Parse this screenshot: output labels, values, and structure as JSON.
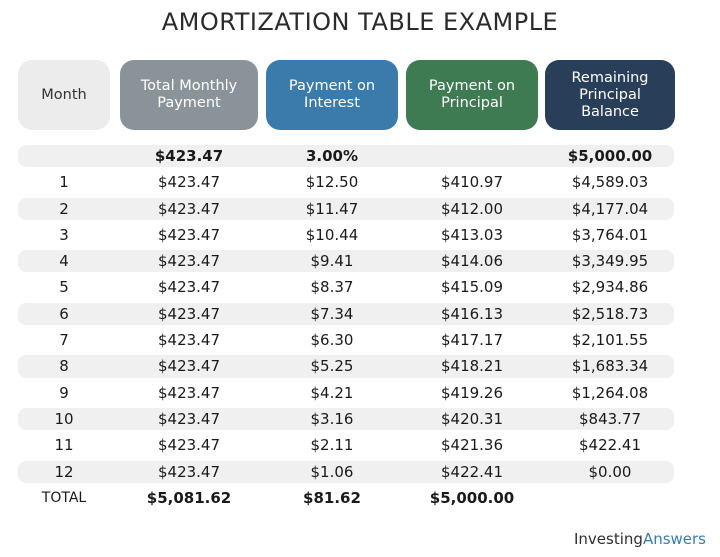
{
  "title": "AMORTIZATION TABLE EXAMPLE",
  "headers": {
    "month": "Month",
    "total": "Total Monthly Payment",
    "interest": "Payment on Interest",
    "principal": "Payment on Principal",
    "balance": "Remaining Principal Balance"
  },
  "colors": {
    "month_header": "#ececec",
    "total_header": "#8a9399",
    "interest_header": "#3b7bab",
    "principal_header": "#3e7b52",
    "balance_header": "#293e58"
  },
  "initial": {
    "month": "",
    "total": "$423.47",
    "interest": "3.00%",
    "principal": "",
    "balance": "$5,000.00"
  },
  "rows": [
    {
      "month": "1",
      "total": "$423.47",
      "interest": "$12.50",
      "principal": "$410.97",
      "balance": "$4,589.03"
    },
    {
      "month": "2",
      "total": "$423.47",
      "interest": "$11.47",
      "principal": "$412.00",
      "balance": "$4,177.04"
    },
    {
      "month": "3",
      "total": "$423.47",
      "interest": "$10.44",
      "principal": "$413.03",
      "balance": "$3,764.01"
    },
    {
      "month": "4",
      "total": "$423.47",
      "interest": "$9.41",
      "principal": "$414.06",
      "balance": "$3,349.95"
    },
    {
      "month": "5",
      "total": "$423.47",
      "interest": "$8.37",
      "principal": "$415.09",
      "balance": "$2,934.86"
    },
    {
      "month": "6",
      "total": "$423.47",
      "interest": "$7.34",
      "principal": "$416.13",
      "balance": "$2,518.73"
    },
    {
      "month": "7",
      "total": "$423.47",
      "interest": "$6.30",
      "principal": "$417.17",
      "balance": "$2,101.55"
    },
    {
      "month": "8",
      "total": "$423.47",
      "interest": "$5.25",
      "principal": "$418.21",
      "balance": "$1,683.34"
    },
    {
      "month": "9",
      "total": "$423.47",
      "interest": "$4.21",
      "principal": "$419.26",
      "balance": "$1,264.08"
    },
    {
      "month": "10",
      "total": "$423.47",
      "interest": "$3.16",
      "principal": "$420.31",
      "balance": "$843.77"
    },
    {
      "month": "11",
      "total": "$423.47",
      "interest": "$2.11",
      "principal": "$421.36",
      "balance": "$422.41"
    },
    {
      "month": "12",
      "total": "$423.47",
      "interest": "$1.06",
      "principal": "$422.41",
      "balance": "$0.00"
    }
  ],
  "totals": {
    "label": "TOTAL",
    "total": "$5,081.62",
    "interest": "$81.62",
    "principal": "$5,000.00"
  },
  "brand": {
    "part1": "Investing",
    "part2": "Answers"
  }
}
